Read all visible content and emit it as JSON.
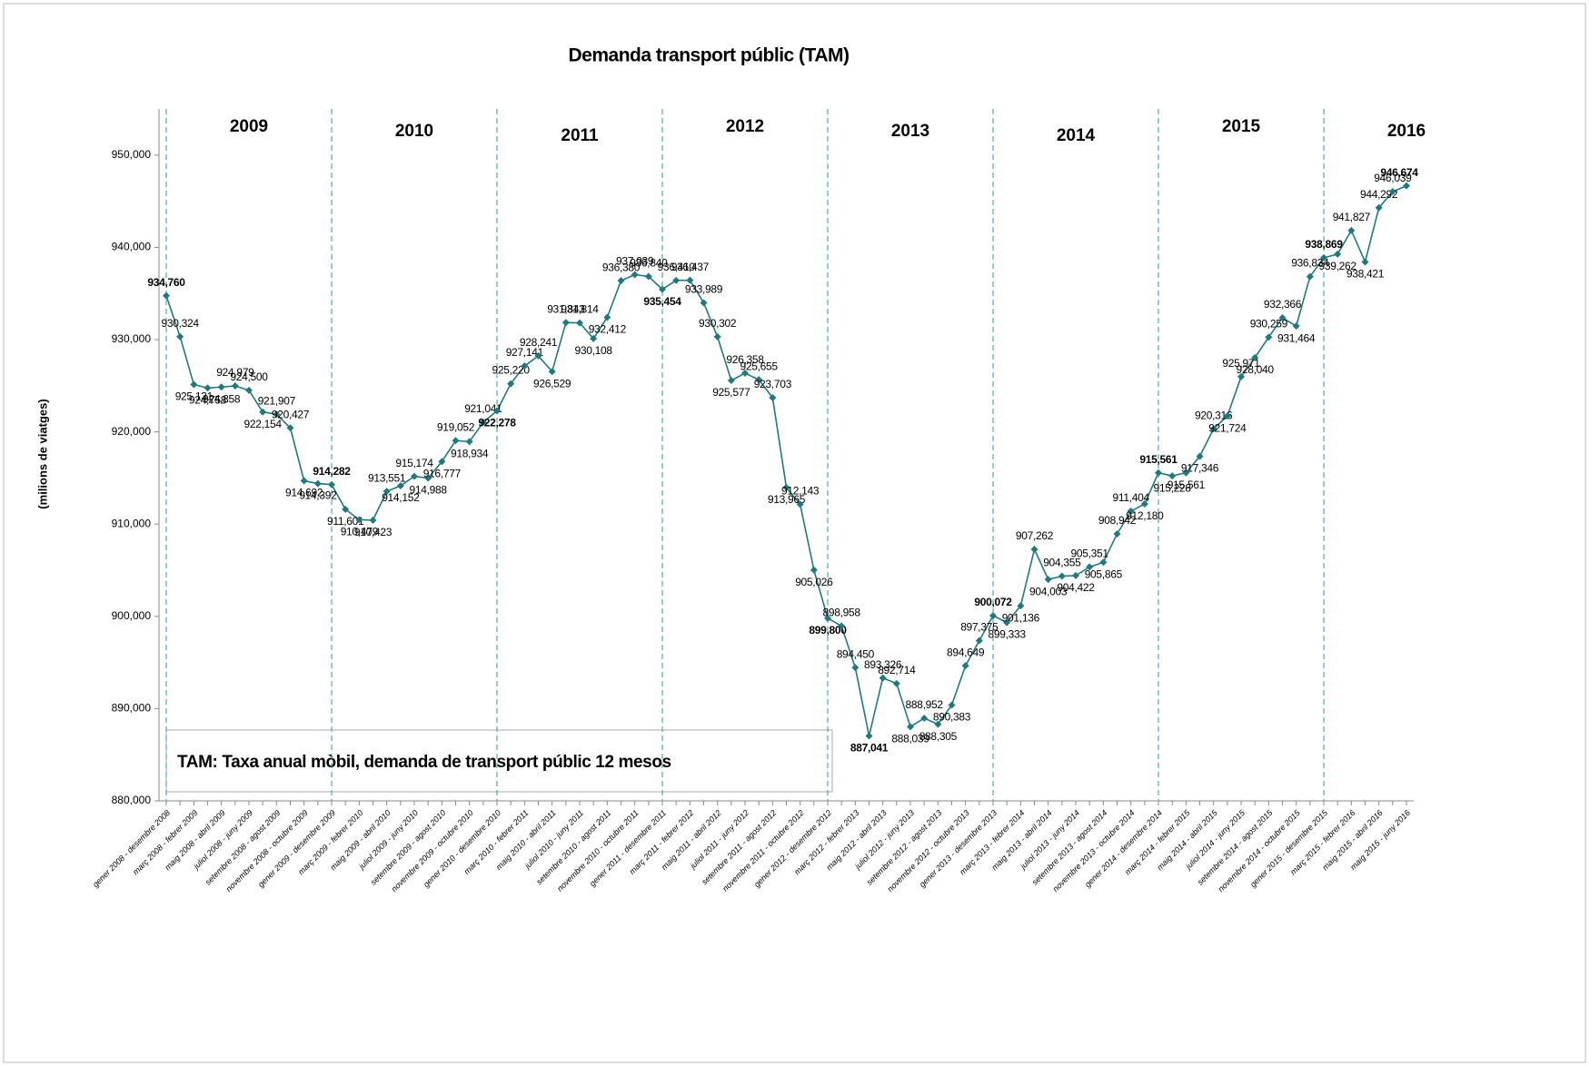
{
  "chart_data": {
    "type": "line",
    "title": "Demanda transport públic (TAM)",
    "y_axis_label": "(milions de viatges)",
    "annotation": "TAM: Taxa anual mòbil, demanda de transport públic 12 mesos",
    "year_labels": [
      "2009",
      "2010",
      "2011",
      "2012",
      "2013",
      "2014",
      "2015",
      "2016"
    ],
    "categories": [
      "gener 2008 - desembre 2008",
      null,
      "març 2008 - febrer 2009",
      null,
      "maig 2008 - abril 2009",
      null,
      "juliol 2008 - juny 2009",
      null,
      "setembre 2008 - agost 2009",
      null,
      "novembre 2008 - octubre 2009",
      null,
      "gener 2009 - desembre 2009",
      null,
      "març 2009 - febrer 2010",
      null,
      "maig 2009 - abril 2010",
      null,
      "juliol 2009 - juny 2010",
      null,
      "setembre 2009 - agost 2010",
      null,
      "novembre 2009 - octubre 2010",
      null,
      "gener 2010 - desembre 2010",
      null,
      "març 2010 - febrer 2011",
      null,
      "maig 2010 - abril 2011",
      null,
      "juliol 2010 - juny 2011",
      null,
      "setembre 2010 - agost 2011",
      null,
      "novembre 2010 - octubre 2011",
      null,
      "gener 2011 - desembre 2011",
      null,
      "març 2011 - febrer 2012",
      null,
      "maig 2011 - abril 2012",
      null,
      "juliol 2011 - juny 2012",
      null,
      "setembre 2011 - agost 2012",
      null,
      "novembre 2011 - octubre 2012",
      null,
      "gener 2012 - desembre 2012",
      null,
      "març 2012 - febrer 2013",
      null,
      "maig 2012 - abril 2013",
      null,
      "juliol 2012 - juny 2013",
      null,
      "setembre 2012 - agost 2013",
      null,
      "novembre 2012 - octubre 2013",
      null,
      "gener 2013 - desembre 2013",
      null,
      "març 2013 - febrer 2014",
      null,
      "maig 2013 - abril 2014",
      null,
      "juliol 2013 - juny 2014",
      null,
      "setembre 2013 - agost 2014",
      null,
      "novembre 2013 - octubre 2014",
      null,
      "gener 2014 - desembre 2014",
      null,
      "març 2014 - febrer 2015",
      null,
      "maig 2014 - abril 2015",
      null,
      "juliol 2014 - juny 2015",
      null,
      "setembre 2014 - agost 2015",
      null,
      "novembre 2014 - octubre 2015",
      null,
      "gener 2015 - desembre 2015",
      null,
      "març 2015 - febrer 2016",
      null,
      "maig 2015 - abril 2016",
      null,
      "maig 2015 - juny 2016"
    ],
    "values": [
      934760,
      930324,
      925131,
      924758,
      924858,
      924979,
      924500,
      922154,
      921907,
      920427,
      914692,
      914392,
      914282,
      911601,
      910479,
      910423,
      913551,
      914152,
      915174,
      914988,
      916777,
      919052,
      918934,
      921041,
      922278,
      925220,
      927141,
      928241,
      926529,
      931843,
      931814,
      930108,
      932412,
      936380,
      937039,
      936840,
      935454,
      936410,
      936437,
      933989,
      930302,
      925577,
      926358,
      925655,
      923703,
      913965,
      912143,
      905026,
      899800,
      898958,
      894450,
      887041,
      893326,
      892714,
      888039,
      888952,
      888305,
      890383,
      894649,
      897375,
      900072,
      899333,
      901136,
      907262,
      904003,
      904355,
      904422,
      905351,
      905865,
      908942,
      911404,
      912180,
      915561,
      915228,
      915561,
      917346,
      920316,
      921724,
      925971,
      928040,
      930259,
      932366,
      931464,
      936834,
      938869,
      939262,
      941827,
      938421,
      944292,
      946039,
      946674
    ],
    "value_labels": [
      "934,760",
      "930,324",
      "925,131",
      "924,758",
      "924,858",
      "924,979",
      "924,500",
      "922,154",
      "921,907",
      "920,427",
      "914,692",
      "914,392",
      "914,282",
      "911,601",
      "910,479",
      "910,423",
      "913,551",
      "914,152",
      "915,174",
      "914,988",
      "916,777",
      "919,052",
      "918,934",
      "921,041",
      "922,278",
      "925,220",
      "927,141",
      "928,241",
      "926,529",
      "931,843",
      "931,814",
      "930,108",
      "932,412",
      "936,380",
      "937,039",
      "936,840",
      "935,454",
      "936,410",
      "936,437",
      "933,989",
      "930,302",
      "925,577",
      "926,358",
      "925,655",
      "923,703",
      "913,965",
      "912,143",
      "905,026",
      "899,800",
      "898,958",
      "894,450",
      "887,041",
      "893,326",
      "892,714",
      "888,039",
      "888,952",
      "888,305",
      "890,383",
      "894,649",
      "897,375",
      "900,072",
      "899,333",
      "901,136",
      "907,262",
      "904,003",
      "904,355",
      "904,422",
      "905,351",
      "905,865",
      "908,942",
      "911,404",
      "912,180",
      "915,561",
      "915,228",
      "915,561",
      "917,346",
      "920,316",
      "921,724",
      "925,971",
      "928,040",
      "930,259",
      "932,366",
      "931,464",
      "936,834",
      "938,869",
      "939,262",
      "941,827",
      "938,421",
      "944,292",
      "946,039",
      "946,674"
    ],
    "color": "#1f7a80",
    "min_label_color": "#ff0000",
    "last_label_color": "#1f7fc4",
    "ylim": [
      880000,
      955000
    ],
    "yticks": [
      {
        "value": 880000,
        "label": "880,000"
      },
      {
        "value": 890000,
        "label": "890,000"
      },
      {
        "value": 900000,
        "label": "900,000"
      },
      {
        "value": 910000,
        "label": "910,000"
      },
      {
        "value": 920000,
        "label": "920,000"
      },
      {
        "value": 930000,
        "label": "930,000"
      },
      {
        "value": 940000,
        "label": "940,000"
      },
      {
        "value": 950000,
        "label": "950,000"
      }
    ]
  }
}
